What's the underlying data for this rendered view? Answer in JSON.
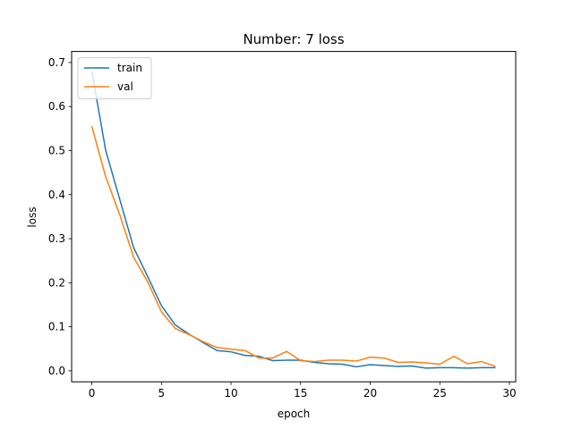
{
  "chart_data": {
    "type": "line",
    "title": "Number: 7 loss",
    "xlabel": "epoch",
    "ylabel": "loss",
    "xlim": [
      -1.45,
      30.45
    ],
    "ylim": [
      -0.025,
      0.725
    ],
    "xticks": [
      0,
      5,
      10,
      15,
      20,
      25,
      30
    ],
    "yticks": [
      0.0,
      0.1,
      0.2,
      0.3,
      0.4,
      0.5,
      0.6,
      0.7
    ],
    "grid": false,
    "legend_position": "upper-left",
    "x": [
      0,
      1,
      2,
      3,
      4,
      5,
      6,
      7,
      8,
      9,
      10,
      11,
      12,
      13,
      14,
      15,
      16,
      17,
      18,
      19,
      20,
      21,
      22,
      23,
      24,
      25,
      26,
      27,
      28,
      29
    ],
    "series": [
      {
        "name": "train",
        "color": "#1f77b4",
        "values": [
          0.68,
          0.5,
          0.39,
          0.28,
          0.215,
          0.148,
          0.104,
          0.083,
          0.064,
          0.046,
          0.043,
          0.035,
          0.033,
          0.023,
          0.024,
          0.024,
          0.019,
          0.016,
          0.015,
          0.009,
          0.014,
          0.012,
          0.01,
          0.011,
          0.006,
          0.007,
          0.007,
          0.006,
          0.007,
          0.007
        ]
      },
      {
        "name": "val",
        "color": "#ff7f0e",
        "values": [
          0.555,
          0.44,
          0.355,
          0.258,
          0.203,
          0.134,
          0.096,
          0.082,
          0.066,
          0.053,
          0.049,
          0.046,
          0.029,
          0.029,
          0.044,
          0.023,
          0.021,
          0.024,
          0.024,
          0.022,
          0.031,
          0.029,
          0.019,
          0.02,
          0.018,
          0.015,
          0.033,
          0.016,
          0.021,
          0.01
        ]
      }
    ]
  }
}
